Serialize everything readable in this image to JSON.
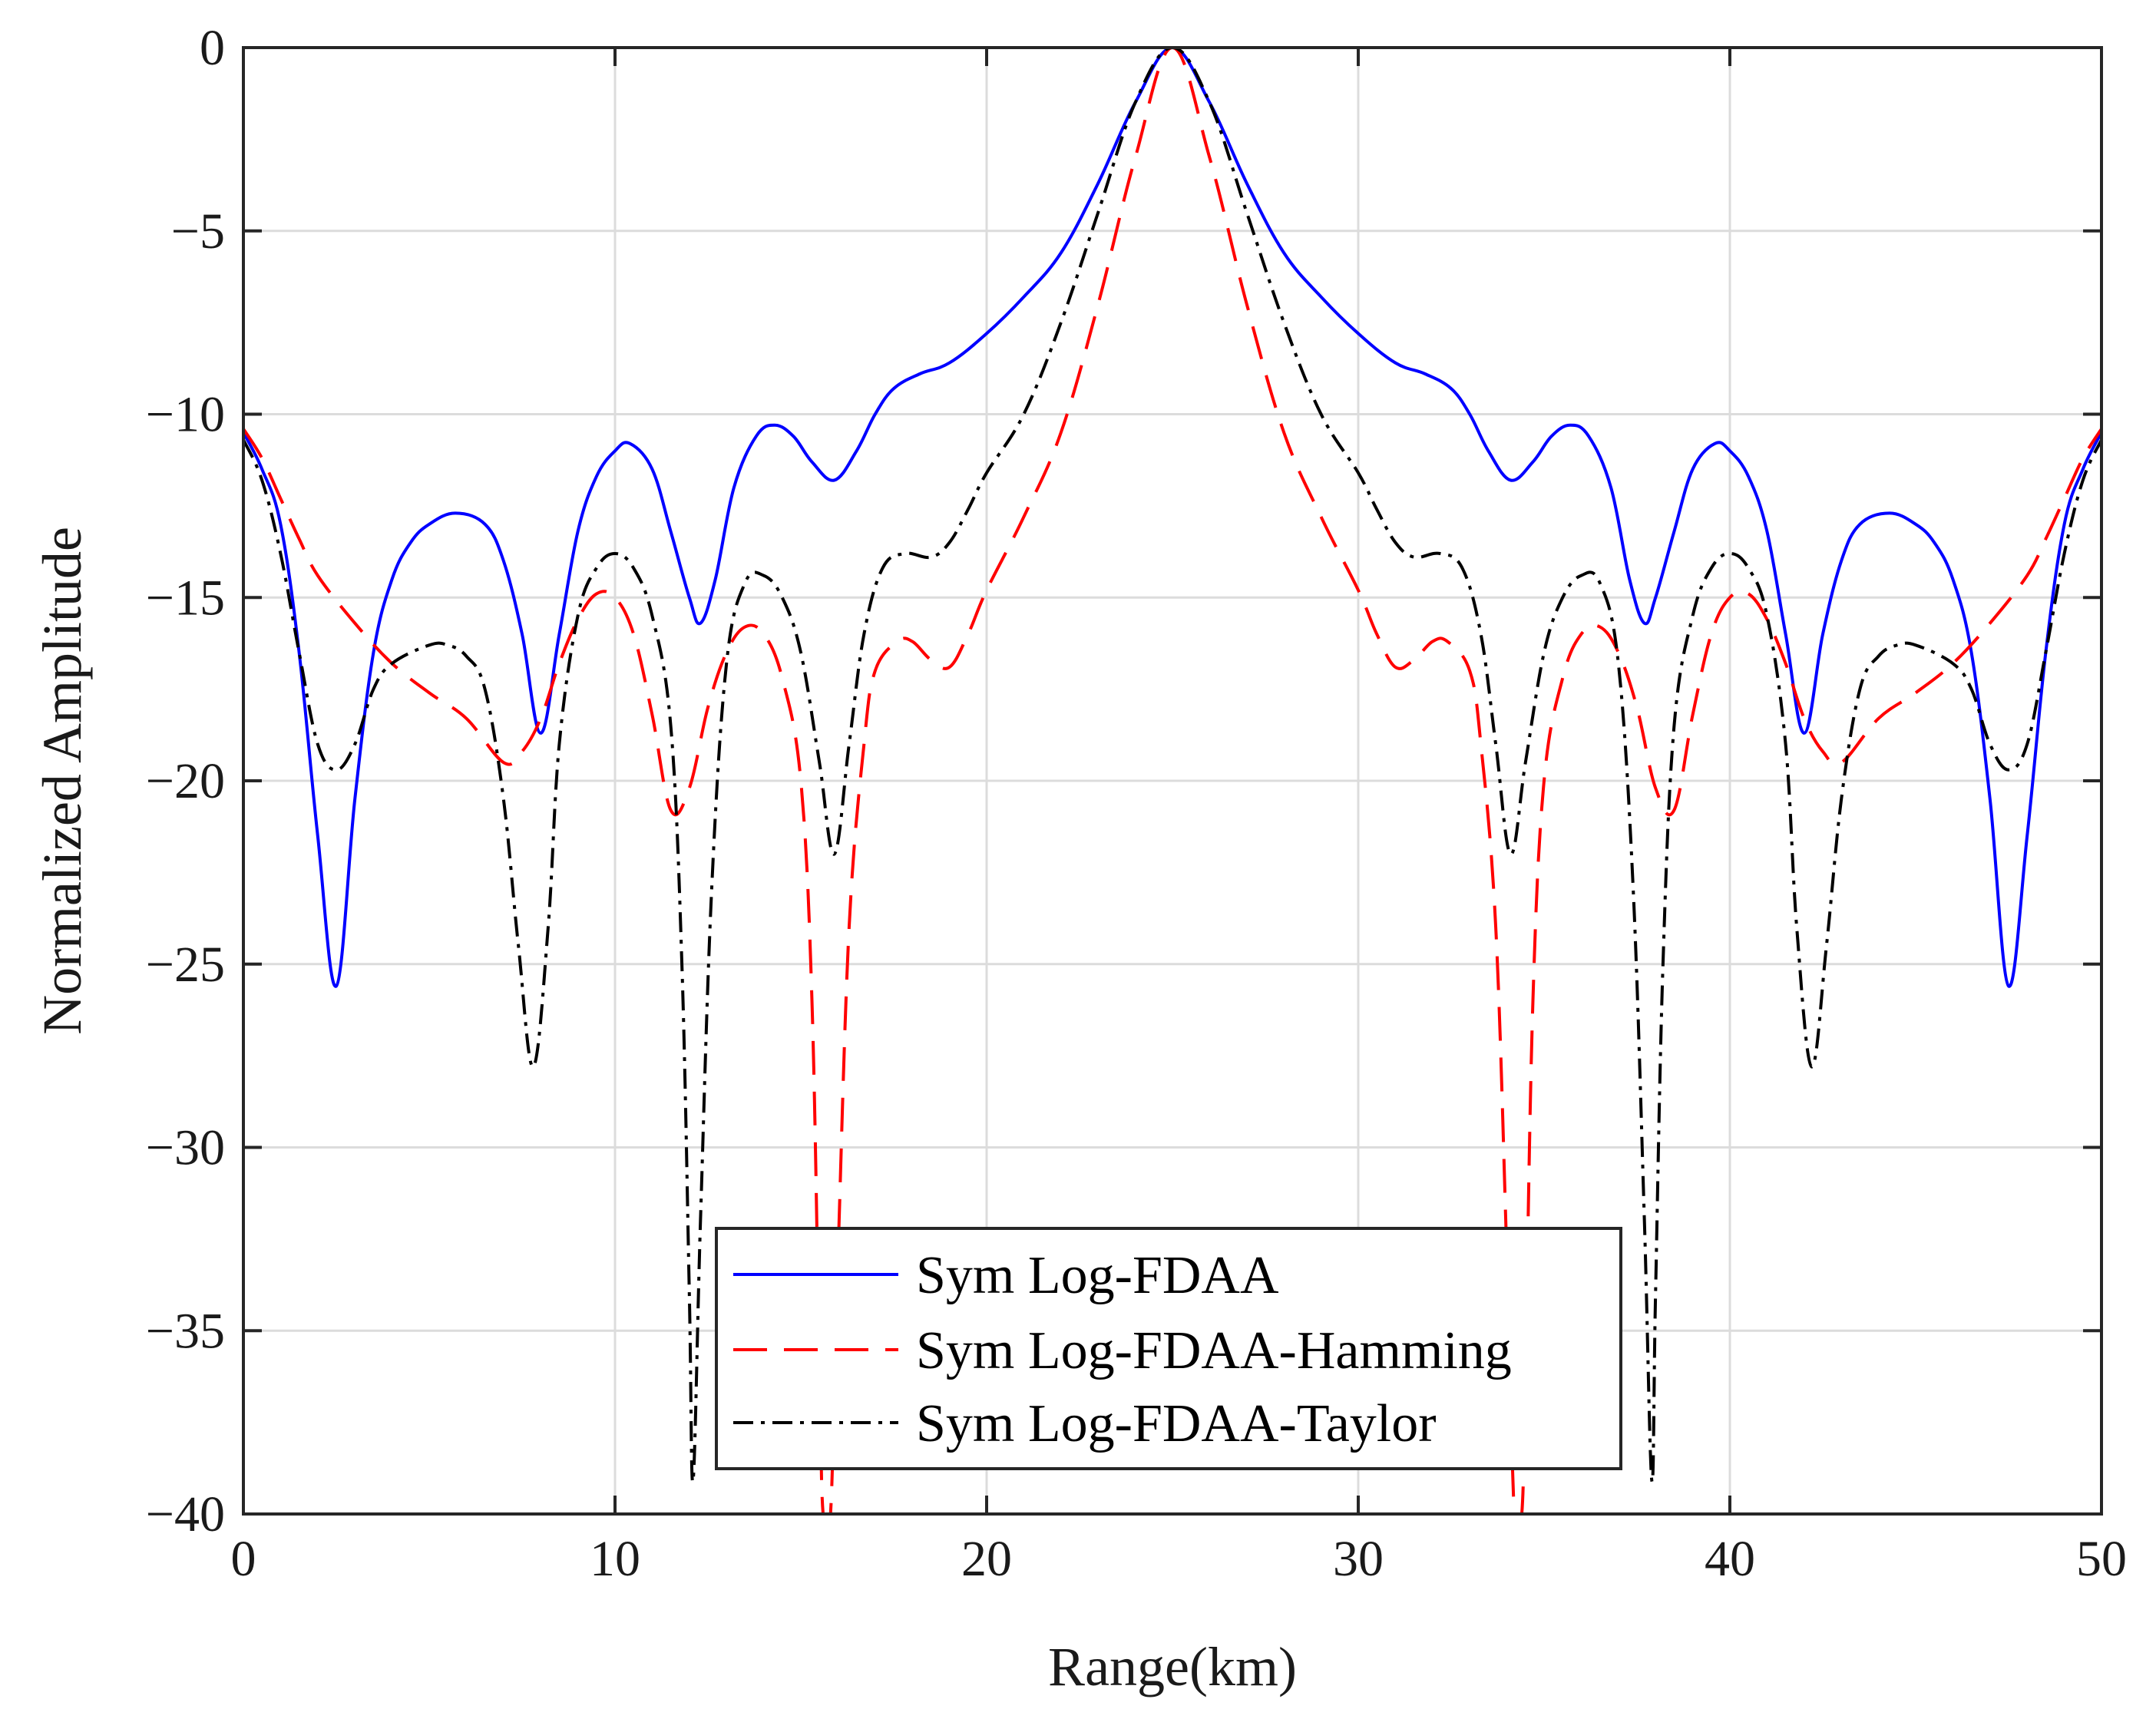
{
  "chart_data": {
    "type": "line",
    "title": "",
    "xlabel": "Range(km)",
    "ylabel": "Normalized Amplitude",
    "xlim": [
      0,
      50
    ],
    "ylim": [
      -40,
      0
    ],
    "xticks": [
      0,
      10,
      20,
      30,
      40,
      50
    ],
    "yticks": [
      0,
      -5,
      -10,
      -15,
      -20,
      -25,
      -30,
      -35,
      -40
    ],
    "xtick_labels": [
      "0",
      "10",
      "20",
      "30",
      "40",
      "50"
    ],
    "ytick_labels": [
      "0",
      "−5",
      "−10",
      "−15",
      "−20",
      "−25",
      "−30",
      "−35",
      "−40"
    ],
    "grid": true,
    "legend_position": "bottom-center",
    "series": [
      {
        "name": "Sym Log-FDAA",
        "color": "#0000ff",
        "style": "solid",
        "points": [
          [
            0,
            -10.5
          ],
          [
            0.5,
            -11.5
          ],
          [
            1,
            -13
          ],
          [
            1.5,
            -16.5
          ],
          [
            2,
            -21.5
          ],
          [
            2.5,
            -25.6
          ],
          [
            3,
            -20.5
          ],
          [
            3.5,
            -16.5
          ],
          [
            4,
            -14.5
          ],
          [
            4.5,
            -13.5
          ],
          [
            5,
            -13
          ],
          [
            5.7,
            -12.7
          ],
          [
            6.5,
            -13
          ],
          [
            7,
            -14
          ],
          [
            7.5,
            -16
          ],
          [
            8,
            -18.7
          ],
          [
            8.5,
            -16
          ],
          [
            9,
            -13.2
          ],
          [
            9.5,
            -11.7
          ],
          [
            10,
            -11
          ],
          [
            10.4,
            -10.8
          ],
          [
            11,
            -11.5
          ],
          [
            11.5,
            -13.2
          ],
          [
            12,
            -15
          ],
          [
            12.3,
            -15.7
          ],
          [
            12.7,
            -14.5
          ],
          [
            13.2,
            -12
          ],
          [
            13.8,
            -10.6
          ],
          [
            14.3,
            -10.3
          ],
          [
            14.8,
            -10.6
          ],
          [
            15.3,
            -11.3
          ],
          [
            15.9,
            -11.8
          ],
          [
            16.5,
            -11
          ],
          [
            17,
            -10
          ],
          [
            17.5,
            -9.3
          ],
          [
            18.2,
            -8.9
          ],
          [
            19,
            -8.6
          ],
          [
            20,
            -7.8
          ],
          [
            21,
            -6.8
          ],
          [
            22,
            -5.6
          ],
          [
            23,
            -3.7
          ],
          [
            24,
            -1.5
          ],
          [
            25,
            0
          ],
          [
            26,
            -1.5
          ],
          [
            27,
            -3.7
          ],
          [
            28,
            -5.6
          ],
          [
            29,
            -6.8
          ],
          [
            30,
            -7.8
          ],
          [
            31,
            -8.6
          ],
          [
            31.8,
            -8.9
          ],
          [
            32.5,
            -9.3
          ],
          [
            33,
            -10
          ],
          [
            33.5,
            -11
          ],
          [
            34.1,
            -11.8
          ],
          [
            34.7,
            -11.3
          ],
          [
            35.2,
            -10.6
          ],
          [
            35.7,
            -10.3
          ],
          [
            36.2,
            -10.6
          ],
          [
            36.8,
            -12
          ],
          [
            37.3,
            -14.5
          ],
          [
            37.7,
            -15.7
          ],
          [
            38,
            -15
          ],
          [
            38.5,
            -13.2
          ],
          [
            39,
            -11.5
          ],
          [
            39.6,
            -10.8
          ],
          [
            40,
            -11
          ],
          [
            40.5,
            -11.7
          ],
          [
            41,
            -13.2
          ],
          [
            41.5,
            -16
          ],
          [
            42,
            -18.7
          ],
          [
            42.5,
            -16
          ],
          [
            43,
            -14
          ],
          [
            43.5,
            -13
          ],
          [
            44.3,
            -12.7
          ],
          [
            45,
            -13
          ],
          [
            45.5,
            -13.5
          ],
          [
            46,
            -14.5
          ],
          [
            46.5,
            -16.5
          ],
          [
            47,
            -20.5
          ],
          [
            47.5,
            -25.6
          ],
          [
            48,
            -21.5
          ],
          [
            48.5,
            -16.5
          ],
          [
            49,
            -13
          ],
          [
            49.5,
            -11.5
          ],
          [
            50,
            -10.5
          ]
        ]
      },
      {
        "name": "Sym Log-FDAA-Hamming",
        "color": "#ff0000",
        "style": "dashed",
        "points": [
          [
            0,
            -10.4
          ],
          [
            0.5,
            -11.2
          ],
          [
            1,
            -12.3
          ],
          [
            1.5,
            -13.4
          ],
          [
            2,
            -14.4
          ],
          [
            3,
            -15.7
          ],
          [
            4,
            -16.8
          ],
          [
            5,
            -17.6
          ],
          [
            6,
            -18.3
          ],
          [
            7,
            -19.5
          ],
          [
            7.5,
            -19.2
          ],
          [
            8,
            -18.3
          ],
          [
            8.5,
            -16.8
          ],
          [
            9,
            -15.6
          ],
          [
            9.5,
            -14.9
          ],
          [
            10,
            -15
          ],
          [
            10.5,
            -16
          ],
          [
            11,
            -18.2
          ],
          [
            11.5,
            -20.8
          ],
          [
            12,
            -20.2
          ],
          [
            12.5,
            -18
          ],
          [
            13,
            -16.5
          ],
          [
            13.5,
            -15.8
          ],
          [
            14,
            -16
          ],
          [
            14.5,
            -17.2
          ],
          [
            15,
            -20
          ],
          [
            15.3,
            -26
          ],
          [
            15.5,
            -36
          ],
          [
            15.6,
            -40
          ],
          [
            15.8,
            -40
          ],
          [
            16,
            -33
          ],
          [
            16.3,
            -24
          ],
          [
            16.7,
            -19
          ],
          [
            17,
            -17
          ],
          [
            17.6,
            -16.2
          ],
          [
            18,
            -16.2
          ],
          [
            18.5,
            -16.7
          ],
          [
            19,
            -16.9
          ],
          [
            19.5,
            -16
          ],
          [
            20,
            -14.8
          ],
          [
            21,
            -12.8
          ],
          [
            22,
            -10.5
          ],
          [
            23,
            -7
          ],
          [
            24,
            -3
          ],
          [
            25,
            0
          ],
          [
            26,
            -3
          ],
          [
            27,
            -7
          ],
          [
            28,
            -10.5
          ],
          [
            29,
            -12.8
          ],
          [
            30,
            -14.8
          ],
          [
            30.5,
            -16
          ],
          [
            31,
            -16.9
          ],
          [
            31.5,
            -16.7
          ],
          [
            32,
            -16.2
          ],
          [
            32.4,
            -16.2
          ],
          [
            33,
            -17
          ],
          [
            33.3,
            -19
          ],
          [
            33.7,
            -24
          ],
          [
            34,
            -33
          ],
          [
            34.2,
            -40
          ],
          [
            34.4,
            -40
          ],
          [
            34.5,
            -36
          ],
          [
            34.7,
            -26
          ],
          [
            35,
            -20
          ],
          [
            35.5,
            -17.2
          ],
          [
            36,
            -16
          ],
          [
            36.5,
            -15.8
          ],
          [
            37,
            -16.5
          ],
          [
            37.5,
            -18
          ],
          [
            38,
            -20.2
          ],
          [
            38.5,
            -20.8
          ],
          [
            39,
            -18.2
          ],
          [
            39.5,
            -16
          ],
          [
            40,
            -15
          ],
          [
            40.5,
            -14.9
          ],
          [
            41,
            -15.6
          ],
          [
            41.5,
            -16.8
          ],
          [
            42,
            -18.3
          ],
          [
            42.5,
            -19.2
          ],
          [
            43,
            -19.5
          ],
          [
            44,
            -18.3
          ],
          [
            45,
            -17.6
          ],
          [
            46,
            -16.8
          ],
          [
            47,
            -15.7
          ],
          [
            48,
            -14.4
          ],
          [
            48.5,
            -13.4
          ],
          [
            49,
            -12.3
          ],
          [
            49.5,
            -11.2
          ],
          [
            50,
            -10.4
          ]
        ]
      },
      {
        "name": "Sym Log-FDAA-Taylor",
        "color": "#000000",
        "style": "dashdot",
        "points": [
          [
            0,
            -10.7
          ],
          [
            0.5,
            -11.8
          ],
          [
            1,
            -13.8
          ],
          [
            1.5,
            -16.5
          ],
          [
            2,
            -19
          ],
          [
            2.5,
            -19.7
          ],
          [
            3,
            -19
          ],
          [
            3.5,
            -17.5
          ],
          [
            4,
            -16.8
          ],
          [
            5,
            -16.3
          ],
          [
            5.5,
            -16.3
          ],
          [
            6,
            -16.6
          ],
          [
            6.5,
            -17.5
          ],
          [
            7,
            -20.5
          ],
          [
            7.4,
            -24.5
          ],
          [
            7.8,
            -27.8
          ],
          [
            8.2,
            -24
          ],
          [
            8.5,
            -19
          ],
          [
            9,
            -15.5
          ],
          [
            9.5,
            -14.2
          ],
          [
            10,
            -13.8
          ],
          [
            10.5,
            -14.2
          ],
          [
            11,
            -15.5
          ],
          [
            11.5,
            -18.5
          ],
          [
            11.8,
            -25
          ],
          [
            12,
            -34
          ],
          [
            12.1,
            -39.1
          ],
          [
            12.3,
            -32
          ],
          [
            12.6,
            -23
          ],
          [
            13,
            -16.8
          ],
          [
            13.5,
            -14.6
          ],
          [
            14,
            -14.4
          ],
          [
            14.5,
            -15
          ],
          [
            15,
            -16.5
          ],
          [
            15.5,
            -19.5
          ],
          [
            15.9,
            -22
          ],
          [
            16.3,
            -19
          ],
          [
            16.7,
            -16
          ],
          [
            17.2,
            -14.2
          ],
          [
            17.8,
            -13.8
          ],
          [
            18.5,
            -13.9
          ],
          [
            19,
            -13.5
          ],
          [
            19.5,
            -12.6
          ],
          [
            20,
            -11.6
          ],
          [
            21,
            -10
          ],
          [
            22,
            -7.5
          ],
          [
            23,
            -4.5
          ],
          [
            24,
            -1.5
          ],
          [
            25,
            0
          ],
          [
            26,
            -1.5
          ],
          [
            27,
            -4.5
          ],
          [
            28,
            -7.5
          ],
          [
            29,
            -10
          ],
          [
            30,
            -11.6
          ],
          [
            30.5,
            -12.6
          ],
          [
            31,
            -13.5
          ],
          [
            31.5,
            -13.9
          ],
          [
            32.2,
            -13.8
          ],
          [
            32.8,
            -14.2
          ],
          [
            33.3,
            -16
          ],
          [
            33.7,
            -19
          ],
          [
            34.1,
            -22
          ],
          [
            34.5,
            -19.5
          ],
          [
            35,
            -16.5
          ],
          [
            35.5,
            -15
          ],
          [
            36,
            -14.4
          ],
          [
            36.5,
            -14.6
          ],
          [
            37,
            -16.8
          ],
          [
            37.4,
            -23
          ],
          [
            37.7,
            -32
          ],
          [
            37.9,
            -39.1
          ],
          [
            38,
            -34
          ],
          [
            38.2,
            -25
          ],
          [
            38.5,
            -18.5
          ],
          [
            39,
            -15.5
          ],
          [
            39.5,
            -14.2
          ],
          [
            40,
            -13.8
          ],
          [
            40.5,
            -14.2
          ],
          [
            41,
            -15.5
          ],
          [
            41.5,
            -19
          ],
          [
            41.8,
            -24
          ],
          [
            42.2,
            -27.8
          ],
          [
            42.6,
            -24.5
          ],
          [
            43,
            -20.5
          ],
          [
            43.5,
            -17.5
          ],
          [
            44,
            -16.6
          ],
          [
            44.5,
            -16.3
          ],
          [
            45,
            -16.3
          ],
          [
            46,
            -16.8
          ],
          [
            46.5,
            -17.5
          ],
          [
            47,
            -19
          ],
          [
            47.5,
            -19.7
          ],
          [
            48,
            -19
          ],
          [
            48.5,
            -16.5
          ],
          [
            49,
            -13.8
          ],
          [
            49.5,
            -11.8
          ],
          [
            50,
            -10.7
          ]
        ]
      }
    ]
  }
}
